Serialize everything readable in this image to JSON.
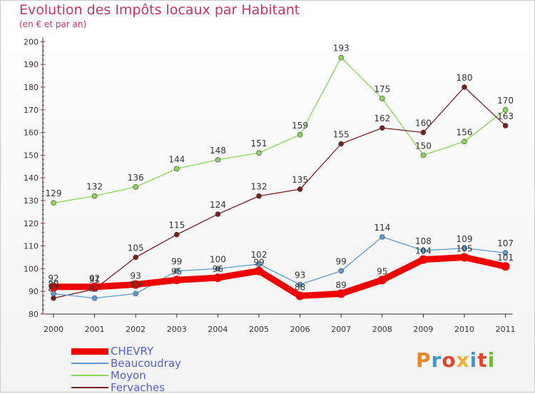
{
  "title": "Evolution des Impôts locaux par Habitant",
  "subtitle": "(en € et par an)",
  "logo_text": "Proxiti",
  "colors": {
    "title": "#c8336b",
    "axis": "#333333",
    "grid_tick": "#b02040",
    "legend_text": "#5560d8"
  },
  "chart_data": {
    "type": "line",
    "title": "Evolution des Impôts locaux par Habitant",
    "subtitle": "(en € et par an)",
    "ylim": [
      80,
      200
    ],
    "yticks": [
      80,
      90,
      100,
      110,
      120,
      130,
      140,
      150,
      160,
      170,
      180,
      190,
      200
    ],
    "x": [
      "2000",
      "2001",
      "2002",
      "2003",
      "2004",
      "2005",
      "2006",
      "2007",
      "2008",
      "2009",
      "2010",
      "2011"
    ],
    "legend_position": "bottom-left",
    "series": [
      {
        "name": "CHEVRY",
        "color": "#ee0000",
        "values": [
          92,
          92,
          93,
          95,
          96,
          99,
          88,
          89,
          95,
          104,
          105,
          101
        ]
      },
      {
        "name": "Beaucoudray",
        "color": "#5b9bd5",
        "values": [
          89,
          87,
          89,
          99,
          100,
          102,
          93,
          99,
          114,
          108,
          109,
          107
        ]
      },
      {
        "name": "Moyon",
        "color": "#88d65a",
        "values": [
          129,
          132,
          136,
          144,
          148,
          151,
          159,
          193,
          175,
          150,
          156,
          170
        ]
      },
      {
        "name": "Fervaches",
        "color": "#7a1f1f",
        "values": [
          87,
          91,
          105,
          115,
          124,
          132,
          135,
          155,
          162,
          160,
          180,
          163
        ]
      }
    ]
  }
}
